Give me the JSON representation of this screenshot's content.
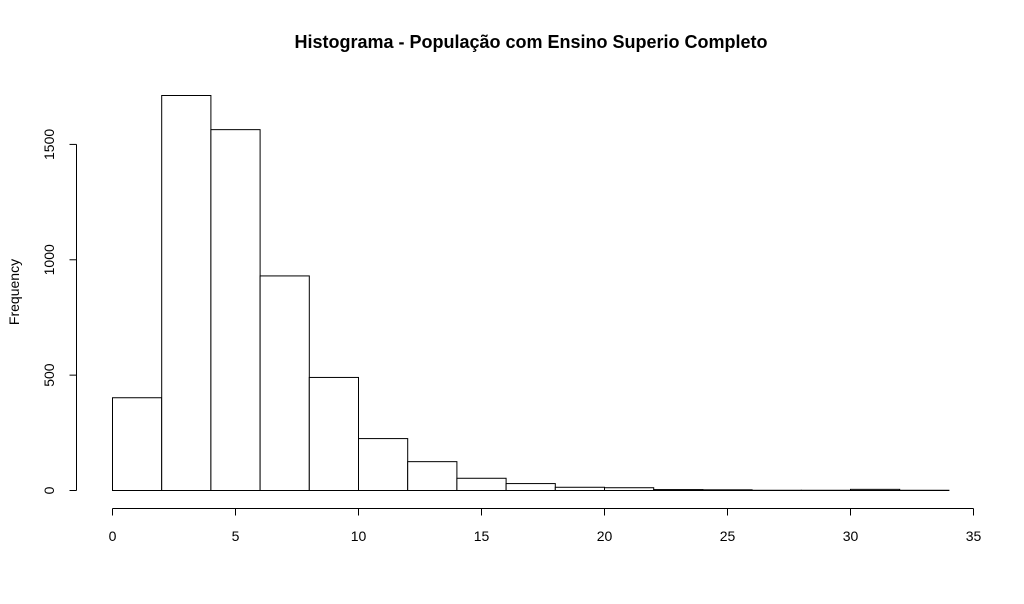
{
  "chart_data": {
    "type": "bar",
    "title": "Histograma - População com Ensino Superio Completo",
    "xlabel": "",
    "ylabel": "Frequency",
    "bins": [
      {
        "from": 0,
        "to": 2,
        "value": 402
      },
      {
        "from": 2,
        "to": 4,
        "value": 1712
      },
      {
        "from": 4,
        "to": 6,
        "value": 1564
      },
      {
        "from": 6,
        "to": 8,
        "value": 930
      },
      {
        "from": 8,
        "to": 10,
        "value": 490
      },
      {
        "from": 10,
        "to": 12,
        "value": 225
      },
      {
        "from": 12,
        "to": 14,
        "value": 125
      },
      {
        "from": 14,
        "to": 16,
        "value": 53
      },
      {
        "from": 16,
        "to": 18,
        "value": 30
      },
      {
        "from": 18,
        "to": 20,
        "value": 14
      },
      {
        "from": 20,
        "to": 22,
        "value": 12
      },
      {
        "from": 22,
        "to": 24,
        "value": 4
      },
      {
        "from": 24,
        "to": 26,
        "value": 3
      },
      {
        "from": 26,
        "to": 28,
        "value": 1
      },
      {
        "from": 28,
        "to": 30,
        "value": 1
      },
      {
        "from": 30,
        "to": 32,
        "value": 5
      },
      {
        "from": 32,
        "to": 34,
        "value": 1
      }
    ],
    "xlim": [
      0,
      35
    ],
    "ylim": [
      0,
      1712
    ],
    "x_ticks": [
      0,
      5,
      10,
      15,
      20,
      25,
      30,
      35
    ],
    "y_ticks": [
      0,
      500,
      1000,
      1500
    ],
    "grid": false,
    "legend": "none",
    "bar_fill": "#ffffff",
    "bar_stroke": "#000000"
  }
}
